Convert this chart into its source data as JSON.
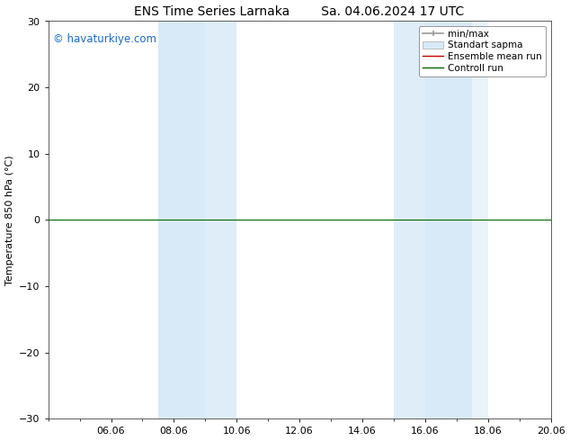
{
  "title": "ENS Time Series Larnaka        Sa. 04.06.2024 17 UTC",
  "ylabel": "Temperature 850 hPa (°C)",
  "watermark": "© havaturkiye.com",
  "watermark_color": "#1a6acd",
  "ylim": [
    -30,
    30
  ],
  "yticks": [
    -30,
    -20,
    -10,
    0,
    10,
    20,
    30
  ],
  "x_min": 0.0,
  "x_max": 16.0,
  "xtick_labels": [
    "06.06",
    "08.06",
    "10.06",
    "12.06",
    "14.06",
    "16.06",
    "18.06",
    "20.06"
  ],
  "xtick_positions": [
    2.0,
    4.0,
    6.0,
    8.0,
    10.0,
    12.0,
    14.0,
    16.0
  ],
  "background_color": "#ffffff",
  "plot_bg_color": "#ffffff",
  "shaded_bands": [
    {
      "x_start": 3.5,
      "x_end": 5.0,
      "color": "#d8eaf7"
    },
    {
      "x_start": 5.0,
      "x_end": 6.0,
      "color": "#deedf8"
    },
    {
      "x_start": 11.0,
      "x_end": 12.0,
      "color": "#deedf8"
    },
    {
      "x_start": 12.0,
      "x_end": 13.5,
      "color": "#d8eaf7"
    },
    {
      "x_start": 13.5,
      "x_end": 14.0,
      "color": "#e8f3fa"
    }
  ],
  "control_run_y": 0.0,
  "control_run_color": "#006600",
  "control_run_lw": 0.8,
  "ensemble_mean_color": "#cc0000",
  "minmax_color": "#999999",
  "stddev_color": "#d8eaf7",
  "legend_labels": [
    "min/max",
    "Standart sapma",
    "Ensemble mean run",
    "Controll run"
  ],
  "legend_colors": [
    "#999999",
    "#d8eaf7",
    "#cc0000",
    "#006600"
  ],
  "font_size_title": 10,
  "font_size_axis_label": 8,
  "font_size_legend": 7.5,
  "font_size_watermark": 8.5,
  "tick_label_size": 8
}
